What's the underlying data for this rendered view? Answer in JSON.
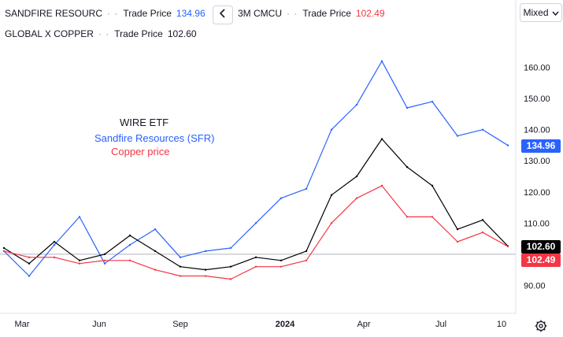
{
  "legend": {
    "row1": [
      {
        "name": "SANDFIRE RESOURC",
        "label": "Trade Price",
        "value": "134.96",
        "color": "blue"
      },
      {
        "name": "3M CMCU",
        "label": "Trade Price",
        "value": "102.49",
        "color": "red"
      }
    ],
    "row2": {
      "name": "GLOBAL X COPPER",
      "label": "Trade Price",
      "value": "102.60"
    }
  },
  "toolbar": {
    "scale_mode": "Mixed"
  },
  "annotations": {
    "title": "WIRE ETF",
    "line2": "Sandfire Resources (SFR)",
    "line3": "Copper price"
  },
  "price_tags": {
    "sfr": "134.96",
    "wire": "102.60",
    "copper": "102.49"
  },
  "colors": {
    "sfr": "#2962ff",
    "wire": "#000000",
    "copper": "#f23645",
    "baseline": "#b2b5be"
  },
  "chart_data": {
    "type": "line",
    "x_ticks": [
      "Mar",
      "Jun",
      "Sep",
      "2024",
      "Apr",
      "Jul",
      "10"
    ],
    "y_ticks": [
      "90.00",
      "100.00",
      "110.00",
      "120.00",
      "130.00",
      "140.00",
      "150.00",
      "160.00"
    ],
    "ylim": [
      81,
      169
    ],
    "baseline": 100,
    "x": [
      "Mar",
      "",
      "",
      "Jun",
      "",
      "",
      "Sep",
      "",
      "",
      "",
      "2024",
      "",
      "",
      "Apr",
      "",
      "",
      "",
      "Jul",
      "",
      "",
      "10"
    ],
    "series": [
      {
        "name": "Sandfire Resources (SFR)",
        "color": "#2962ff",
        "values": [
          101,
          93,
          103,
          112,
          97,
          103,
          108,
          99,
          101,
          102,
          110,
          118,
          121,
          140,
          148,
          162,
          147,
          149,
          138,
          140,
          134.96
        ]
      },
      {
        "name": "WIRE ETF",
        "color": "#000000",
        "values": [
          102,
          97,
          104,
          98,
          100,
          106,
          101,
          96,
          95,
          96,
          99,
          98,
          101,
          119,
          125,
          137,
          128,
          122,
          108,
          111,
          102.6
        ]
      },
      {
        "name": "Copper price",
        "color": "#f23645",
        "values": [
          101,
          99,
          99,
          97,
          98,
          98,
          95,
          93,
          93,
          92,
          96,
          96,
          98,
          110,
          118,
          122,
          112,
          112,
          104,
          107,
          102.49
        ]
      }
    ]
  }
}
